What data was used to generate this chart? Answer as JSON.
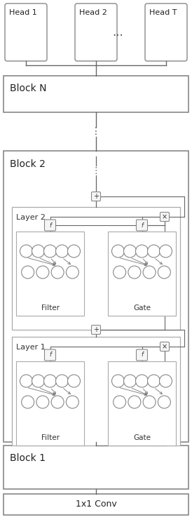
{
  "bg_color": "#ffffff",
  "fig_width": 2.74,
  "fig_height": 7.44,
  "dpi": 100,
  "heads": [
    "Head 1",
    "Head 2",
    "Head T"
  ],
  "blocks": [
    "Block N",
    "Block 2",
    "Block 1"
  ],
  "bottom_label": "1x1 Conv",
  "layer_labels": [
    "Layer 2",
    "Layer 1"
  ],
  "sublabels": [
    "Filter",
    "Gate"
  ],
  "edge_color": "#888888",
  "line_color": "#666666",
  "arrow_color": "#666666",
  "node_color": "#ffffff"
}
